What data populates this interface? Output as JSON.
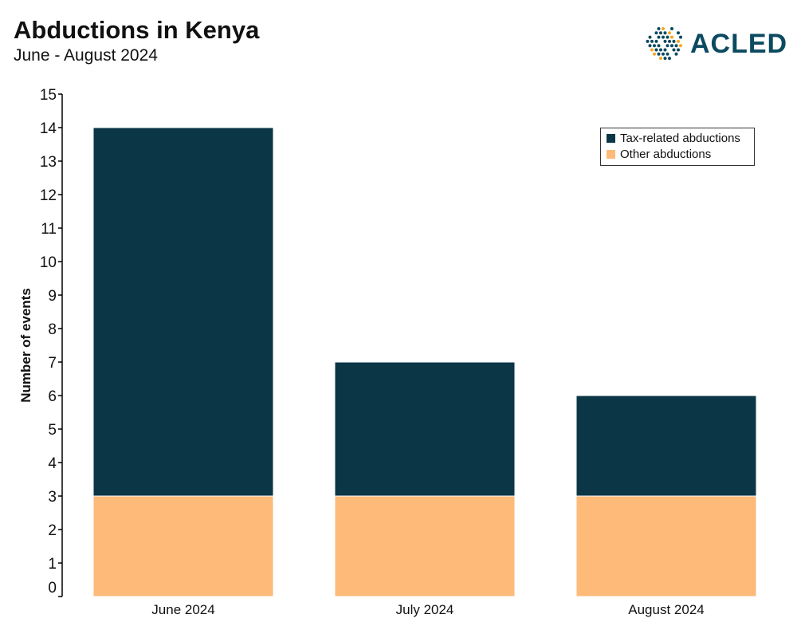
{
  "header": {
    "title": "Abductions in Kenya",
    "subtitle": "June - August 2024",
    "logo_text": "ACLED"
  },
  "chart_data": {
    "type": "bar",
    "stacked": true,
    "title": "Abductions in Kenya",
    "subtitle": "June - August 2024",
    "xlabel": "",
    "ylabel": "Number of events",
    "ylim": [
      0,
      15
    ],
    "yticks": [
      0,
      1,
      2,
      3,
      4,
      5,
      6,
      7,
      8,
      9,
      10,
      11,
      12,
      13,
      14,
      15
    ],
    "categories": [
      "June 2024",
      "July 2024",
      "August 2024"
    ],
    "series": [
      {
        "name": "Other abductions",
        "values": [
          3,
          3,
          3
        ],
        "color": "#fdba78"
      },
      {
        "name": "Tax-related abductions",
        "values": [
          11,
          4,
          3
        ],
        "color": "#0b3646"
      }
    ],
    "legend_entries": [
      "Tax-related abductions",
      "Other abductions"
    ],
    "legend_placement": "top-right",
    "grid": false
  }
}
